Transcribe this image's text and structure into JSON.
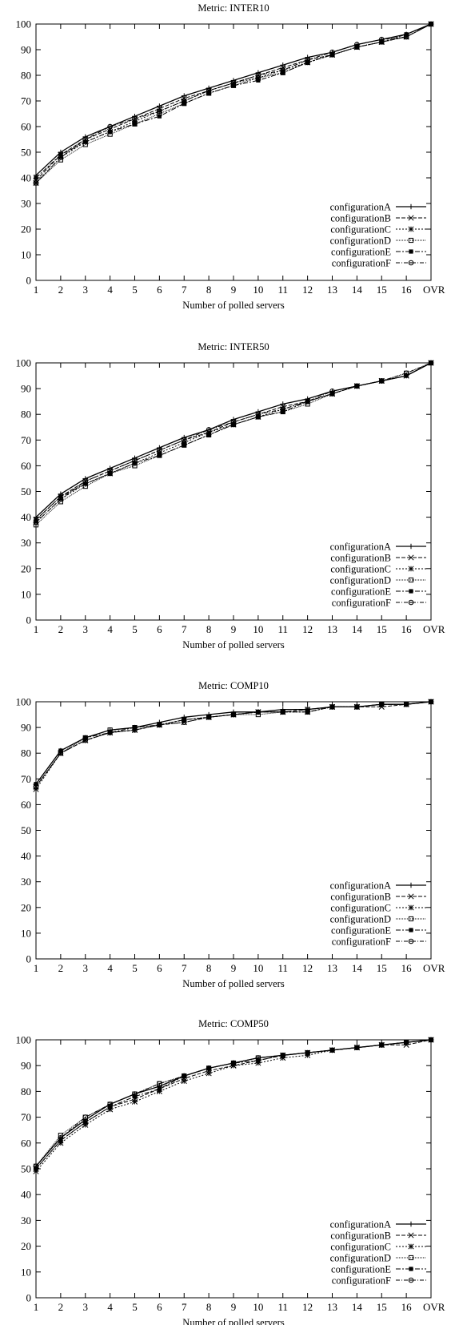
{
  "chart_data": [
    {
      "type": "line",
      "title": "Metric: INTER10",
      "xlabel": "Number of polled servers",
      "ylabel": "",
      "categories": [
        "1",
        "2",
        "3",
        "4",
        "5",
        "6",
        "7",
        "8",
        "9",
        "10",
        "11",
        "12",
        "13",
        "14",
        "15",
        "16",
        "OVR"
      ],
      "ylim": [
        0,
        100
      ],
      "yticks": [
        0,
        10,
        20,
        30,
        40,
        50,
        60,
        70,
        80,
        90,
        100
      ],
      "grid": false,
      "legend": "bottom-right",
      "series": [
        {
          "name": "configurationA",
          "values": [
            41,
            50,
            56,
            60,
            64,
            68,
            72,
            75,
            78,
            81,
            84,
            87,
            89,
            92,
            94,
            96,
            100
          ]
        },
        {
          "name": "configurationB",
          "values": [
            39,
            49,
            55,
            59,
            63,
            67,
            71,
            74,
            77,
            80,
            83,
            86,
            88,
            91,
            93,
            95,
            100
          ]
        },
        {
          "name": "configurationC",
          "values": [
            38,
            48,
            54,
            58,
            62,
            66,
            70,
            74,
            77,
            79,
            82,
            85,
            88,
            91,
            93,
            95,
            100
          ]
        },
        {
          "name": "configurationD",
          "values": [
            38,
            47,
            53,
            57,
            61,
            65,
            69,
            73,
            76,
            79,
            81,
            85,
            88,
            91,
            93,
            95,
            100
          ]
        },
        {
          "name": "configurationE",
          "values": [
            40,
            49,
            54,
            58,
            61,
            64,
            69,
            73,
            76,
            78,
            81,
            85,
            88,
            91,
            93,
            96,
            100
          ]
        },
        {
          "name": "configurationF",
          "values": [
            38,
            48,
            55,
            60,
            63,
            66,
            70,
            74,
            77,
            80,
            82,
            86,
            89,
            92,
            94,
            95,
            100
          ]
        }
      ]
    },
    {
      "type": "line",
      "title": "Metric: INTER50",
      "xlabel": "Number of polled servers",
      "ylabel": "",
      "categories": [
        "1",
        "2",
        "3",
        "4",
        "5",
        "6",
        "7",
        "8",
        "9",
        "10",
        "11",
        "12",
        "13",
        "14",
        "15",
        "16",
        "OVR"
      ],
      "ylim": [
        0,
        100
      ],
      "yticks": [
        0,
        10,
        20,
        30,
        40,
        50,
        60,
        70,
        80,
        90,
        100
      ],
      "grid": false,
      "legend": "bottom-right",
      "series": [
        {
          "name": "configurationA",
          "values": [
            40,
            49,
            55,
            59,
            63,
            67,
            71,
            74,
            78,
            81,
            84,
            86,
            89,
            91,
            93,
            95,
            100
          ]
        },
        {
          "name": "configurationB",
          "values": [
            39,
            48,
            54,
            58,
            62,
            66,
            70,
            73,
            77,
            80,
            83,
            85,
            88,
            91,
            93,
            95,
            100
          ]
        },
        {
          "name": "configurationC",
          "values": [
            38,
            47,
            53,
            57,
            61,
            65,
            69,
            73,
            76,
            79,
            82,
            85,
            88,
            91,
            93,
            95,
            100
          ]
        },
        {
          "name": "configurationD",
          "values": [
            37,
            46,
            52,
            57,
            60,
            64,
            68,
            72,
            76,
            79,
            81,
            84,
            88,
            91,
            93,
            96,
            100
          ]
        },
        {
          "name": "configurationE",
          "values": [
            39,
            48,
            53,
            57,
            61,
            64,
            68,
            72,
            76,
            79,
            81,
            85,
            88,
            91,
            93,
            95,
            100
          ]
        },
        {
          "name": "configurationF",
          "values": [
            38,
            47,
            54,
            58,
            62,
            66,
            70,
            74,
            77,
            80,
            82,
            85,
            89,
            91,
            93,
            96,
            100
          ]
        }
      ]
    },
    {
      "type": "line",
      "title": "Metric: COMP10",
      "xlabel": "Number of polled servers",
      "ylabel": "",
      "categories": [
        "1",
        "2",
        "3",
        "4",
        "5",
        "6",
        "7",
        "8",
        "9",
        "10",
        "11",
        "12",
        "13",
        "14",
        "15",
        "16",
        "OVR"
      ],
      "ylim": [
        0,
        100
      ],
      "yticks": [
        0,
        10,
        20,
        30,
        40,
        50,
        60,
        70,
        80,
        90,
        100
      ],
      "grid": false,
      "legend": "bottom-right",
      "series": [
        {
          "name": "configurationA",
          "values": [
            68,
            81,
            86,
            89,
            90,
            92,
            94,
            95,
            96,
            96,
            97,
            97,
            98,
            98,
            99,
            99,
            100
          ]
        },
        {
          "name": "configurationB",
          "values": [
            67,
            80,
            85,
            88,
            89,
            91,
            92,
            94,
            95,
            96,
            96,
            97,
            98,
            98,
            98,
            99,
            100
          ]
        },
        {
          "name": "configurationC",
          "values": [
            66,
            80,
            85,
            88,
            89,
            91,
            93,
            94,
            95,
            96,
            96,
            96,
            98,
            98,
            99,
            99,
            100
          ]
        },
        {
          "name": "configurationD",
          "values": [
            67,
            80,
            86,
            89,
            90,
            91,
            93,
            94,
            95,
            95,
            96,
            96,
            98,
            98,
            99,
            99,
            100
          ]
        },
        {
          "name": "configurationE",
          "values": [
            68,
            81,
            86,
            88,
            90,
            91,
            93,
            94,
            95,
            96,
            96,
            96,
            98,
            98,
            99,
            99,
            100
          ]
        },
        {
          "name": "configurationF",
          "values": [
            67,
            80,
            85,
            88,
            89,
            91,
            92,
            94,
            95,
            96,
            96,
            97,
            98,
            98,
            99,
            99,
            100
          ]
        }
      ]
    },
    {
      "type": "line",
      "title": "Metric: COMP50",
      "xlabel": "Number of polled servers",
      "ylabel": "",
      "categories": [
        "1",
        "2",
        "3",
        "4",
        "5",
        "6",
        "7",
        "8",
        "9",
        "10",
        "11",
        "12",
        "13",
        "14",
        "15",
        "16",
        "OVR"
      ],
      "ylim": [
        0,
        100
      ],
      "yticks": [
        0,
        10,
        20,
        30,
        40,
        50,
        60,
        70,
        80,
        90,
        100
      ],
      "grid": false,
      "legend": "bottom-right",
      "series": [
        {
          "name": "configurationA",
          "values": [
            51,
            62,
            69,
            75,
            79,
            82,
            86,
            89,
            91,
            93,
            94,
            95,
            96,
            97,
            98,
            99,
            100
          ]
        },
        {
          "name": "configurationB",
          "values": [
            50,
            61,
            68,
            74,
            77,
            81,
            85,
            88,
            90,
            92,
            94,
            95,
            96,
            97,
            98,
            98,
            100
          ]
        },
        {
          "name": "configurationC",
          "values": [
            49,
            60,
            67,
            73,
            76,
            80,
            84,
            87,
            90,
            91,
            93,
            94,
            96,
            97,
            98,
            99,
            100
          ]
        },
        {
          "name": "configurationD",
          "values": [
            51,
            63,
            70,
            75,
            79,
            83,
            86,
            89,
            91,
            93,
            94,
            95,
            96,
            97,
            98,
            99,
            100
          ]
        },
        {
          "name": "configurationE",
          "values": [
            50,
            61,
            68,
            74,
            78,
            81,
            86,
            89,
            91,
            92,
            94,
            95,
            96,
            97,
            98,
            99,
            100
          ]
        },
        {
          "name": "configurationF",
          "values": [
            51,
            62,
            70,
            75,
            79,
            83,
            86,
            89,
            91,
            93,
            94,
            95,
            96,
            97,
            98,
            99,
            100
          ]
        }
      ]
    }
  ],
  "colors": {
    "line": "#000000",
    "axis": "#000000",
    "background": "#ffffff"
  }
}
